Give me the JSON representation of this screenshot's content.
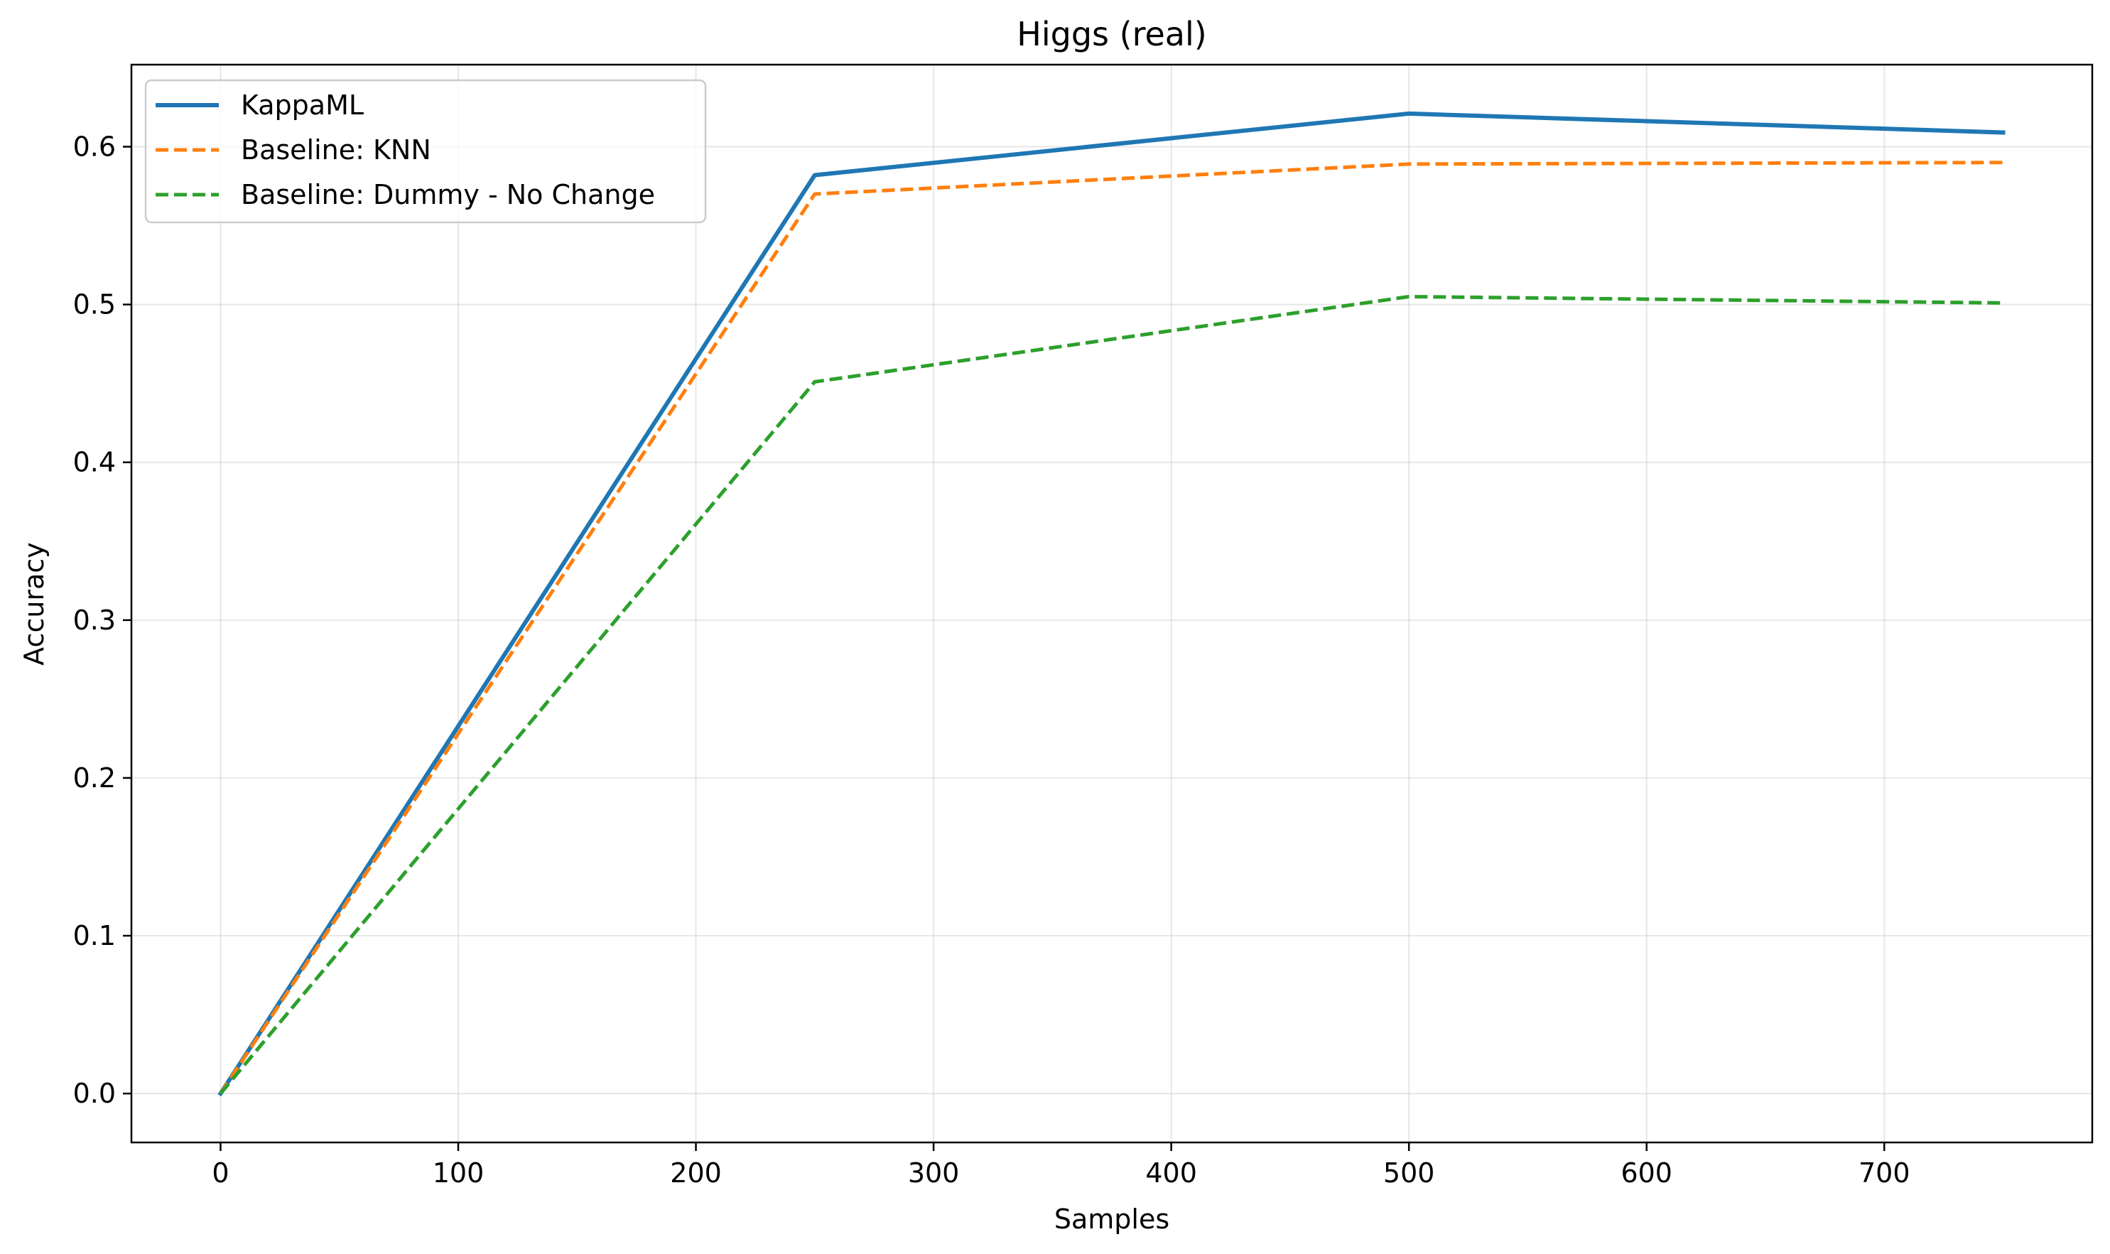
{
  "chart_data": {
    "type": "line",
    "title": "Higgs (real)",
    "xlabel": "Samples",
    "ylabel": "Accuracy",
    "x": [
      0,
      250,
      500,
      750
    ],
    "xlim": [
      -37.5,
      787.5
    ],
    "ylim": [
      -0.031,
      0.652
    ],
    "xticks": [
      0,
      100,
      200,
      300,
      400,
      500,
      600,
      700
    ],
    "yticks": [
      0.0,
      0.1,
      0.2,
      0.3,
      0.4,
      0.5,
      0.6
    ],
    "ytick_labels": [
      "0.0",
      "0.1",
      "0.2",
      "0.3",
      "0.4",
      "0.5",
      "0.6"
    ],
    "grid": true,
    "legend_position": "top-left",
    "series": [
      {
        "name": "KappaML",
        "values": [
          0.0,
          0.582,
          0.621,
          0.609
        ],
        "color": "#1f77b4",
        "style": "solid"
      },
      {
        "name": "Baseline: KNN",
        "values": [
          0.0,
          0.57,
          0.589,
          0.59
        ],
        "color": "#ff7f0e",
        "style": "dashed"
      },
      {
        "name": "Baseline: Dummy - No Change",
        "values": [
          0.0,
          0.451,
          0.505,
          0.501
        ],
        "color": "#2ca02c",
        "style": "dashed"
      }
    ]
  }
}
